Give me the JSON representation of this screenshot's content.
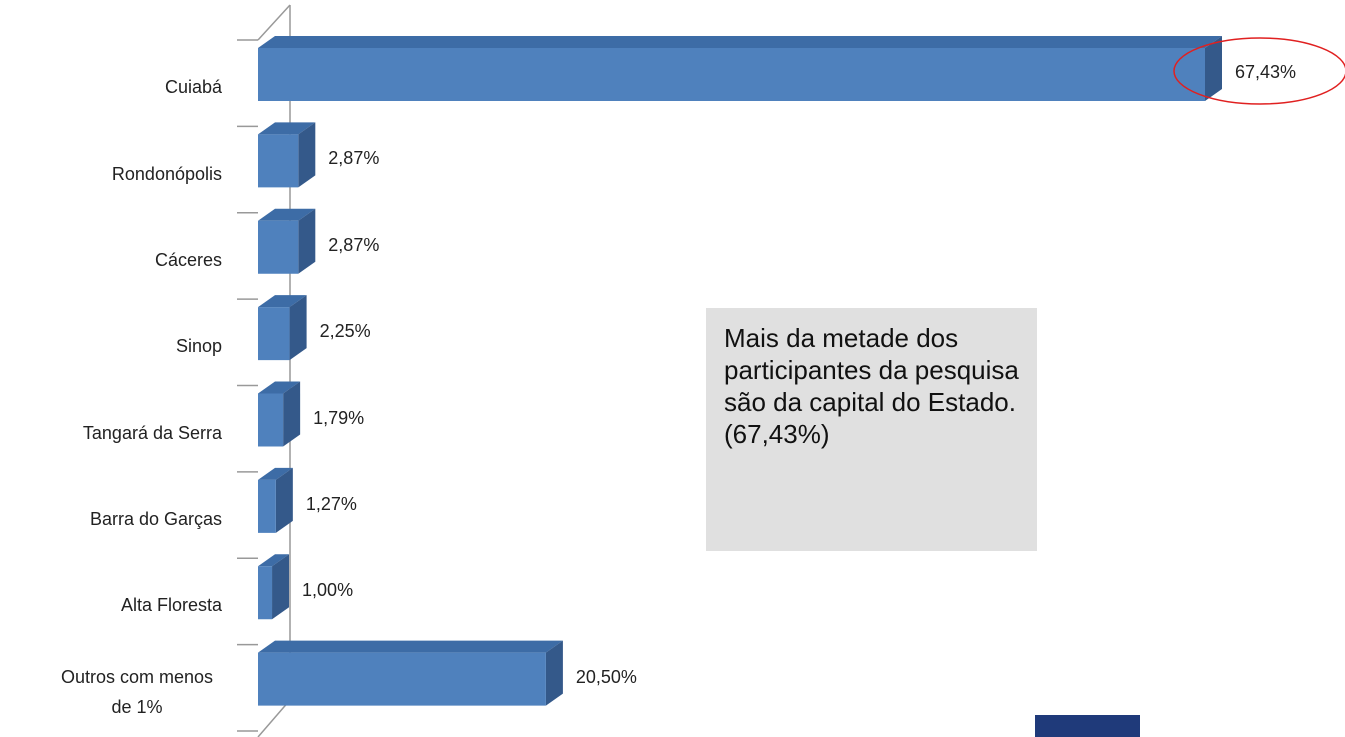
{
  "chart_data": {
    "type": "bar",
    "orientation": "horizontal",
    "categories": [
      "Cuiabá",
      "Rondonópolis",
      "Cáceres",
      "Sinop",
      "Tangará da Serra",
      "Barra do Garças",
      "Alta Floresta",
      "Outros com menos de 1%"
    ],
    "values": [
      67.43,
      2.87,
      2.87,
      2.25,
      1.79,
      1.27,
      1.0,
      20.5
    ],
    "value_labels": [
      "67,43%",
      "2,87%",
      "2,87%",
      "2,25%",
      "1,79%",
      "1,27%",
      "1,00%",
      "20,50%"
    ],
    "color": "#4f81bd",
    "annotation": "Mais da metade dos participantes da pesquisa são da capital do Estado. (67,43%)"
  }
}
